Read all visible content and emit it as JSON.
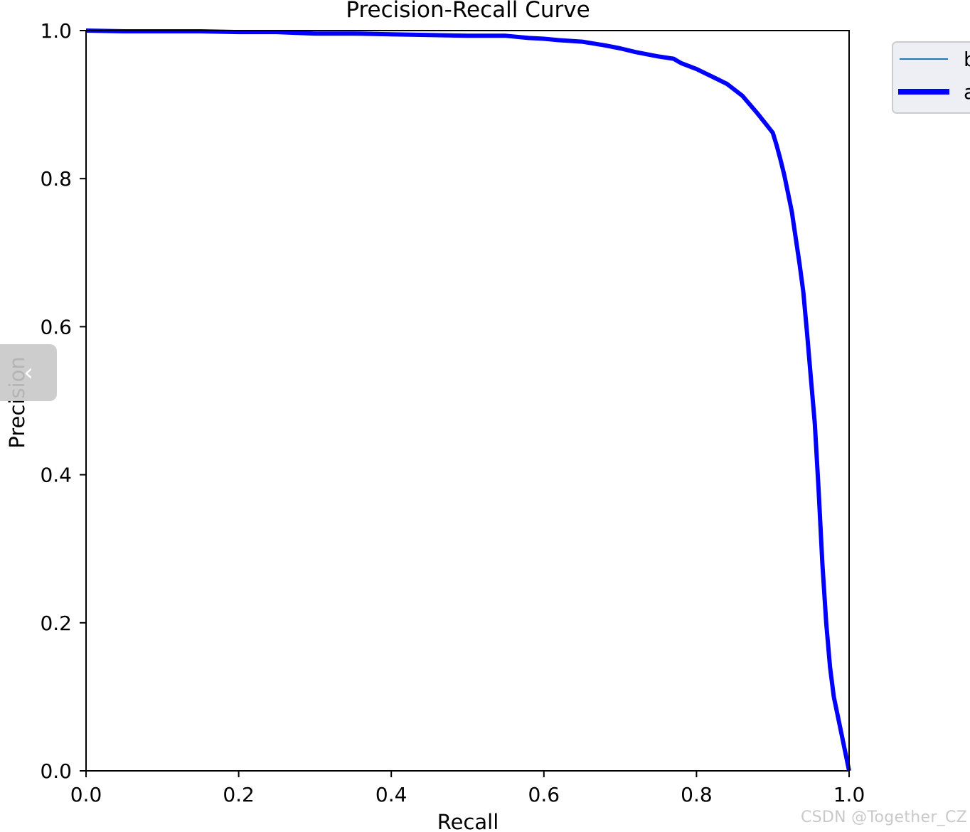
{
  "chart_data": {
    "type": "line",
    "title": "Precision-Recall Curve",
    "xlabel": "Recall",
    "ylabel": "Precision",
    "xlim": [
      0.0,
      1.0
    ],
    "ylim": [
      0.0,
      1.0
    ],
    "xticks": [
      "0.0",
      "0.2",
      "0.4",
      "0.6",
      "0.8",
      "1.0"
    ],
    "yticks": [
      "0.0",
      "0.2",
      "0.4",
      "0.6",
      "0.8",
      "1.0"
    ],
    "grid": false,
    "legend": {
      "placement": "outside-top-right",
      "entries": [
        "b",
        "a"
      ]
    },
    "series": [
      {
        "name": "b",
        "color": "#1f77b4",
        "x": [],
        "y": []
      },
      {
        "name": "a",
        "color": "#0000ff",
        "x": [
          0.0,
          0.05,
          0.1,
          0.15,
          0.2,
          0.25,
          0.3,
          0.35,
          0.4,
          0.45,
          0.5,
          0.55,
          0.58,
          0.6,
          0.62,
          0.65,
          0.68,
          0.7,
          0.72,
          0.75,
          0.77,
          0.78,
          0.8,
          0.82,
          0.84,
          0.86,
          0.87,
          0.88,
          0.89,
          0.9,
          0.905,
          0.91,
          0.915,
          0.92,
          0.925,
          0.93,
          0.935,
          0.94,
          0.945,
          0.95,
          0.955,
          0.96,
          0.965,
          0.97,
          0.975,
          0.98,
          0.99,
          1.0
        ],
        "y": [
          1.0,
          0.999,
          0.999,
          0.999,
          0.998,
          0.998,
          0.996,
          0.996,
          0.995,
          0.994,
          0.993,
          0.993,
          0.99,
          0.989,
          0.987,
          0.985,
          0.98,
          0.976,
          0.971,
          0.965,
          0.962,
          0.956,
          0.948,
          0.938,
          0.928,
          0.912,
          0.9,
          0.888,
          0.875,
          0.862,
          0.845,
          0.826,
          0.805,
          0.78,
          0.755,
          0.72,
          0.685,
          0.647,
          0.59,
          0.53,
          0.47,
          0.38,
          0.28,
          0.2,
          0.14,
          0.1,
          0.05,
          0.0
        ]
      }
    ]
  },
  "side_toggle": {
    "icon": "chevron-left-icon",
    "glyph": "‹"
  },
  "watermark": "CSDN @Together_CZ"
}
